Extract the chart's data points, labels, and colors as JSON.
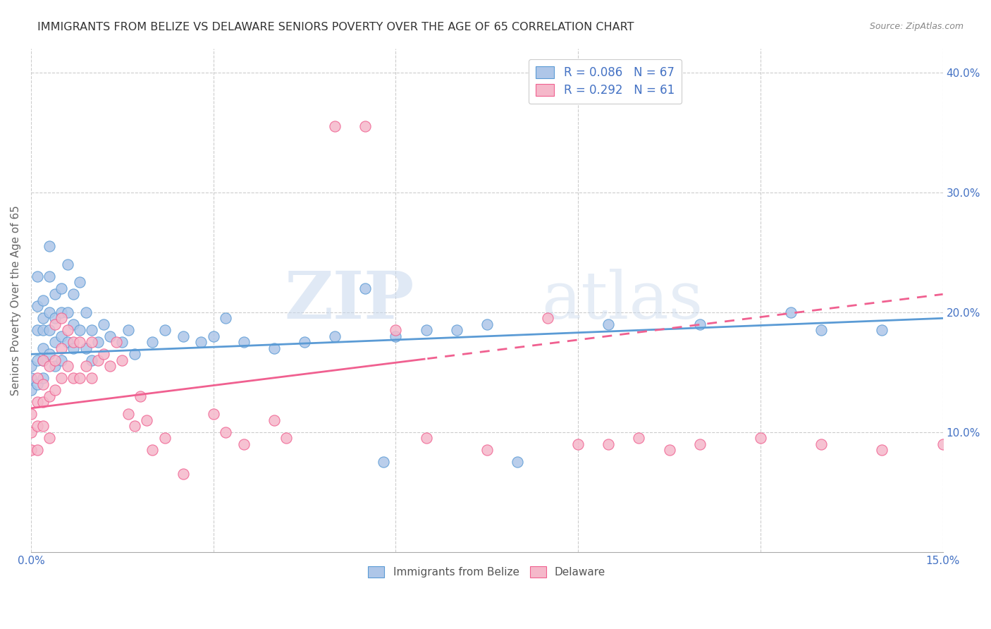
{
  "title": "IMMIGRANTS FROM BELIZE VS DELAWARE SENIORS POVERTY OVER THE AGE OF 65 CORRELATION CHART",
  "source": "Source: ZipAtlas.com",
  "ylabel": "Seniors Poverty Over the Age of 65",
  "xlim": [
    0.0,
    0.15
  ],
  "ylim": [
    0.0,
    0.42
  ],
  "xticks": [
    0.0,
    0.03,
    0.06,
    0.09,
    0.12,
    0.15
  ],
  "xtick_labels": [
    "0.0%",
    "",
    "",
    "",
    "",
    "15.0%"
  ],
  "yticks_right": [
    0.1,
    0.2,
    0.3,
    0.4
  ],
  "ytick_labels_right": [
    "10.0%",
    "20.0%",
    "30.0%",
    "40.0%"
  ],
  "belize_R": 0.086,
  "belize_N": 67,
  "delaware_R": 0.292,
  "delaware_N": 61,
  "belize_color": "#aec6e8",
  "delaware_color": "#f5b8ca",
  "belize_line_color": "#5b9bd5",
  "delaware_line_color": "#f06090",
  "legend_label_belize": "Immigrants from Belize",
  "legend_label_delaware": "Delaware",
  "watermark_zip": "ZIP",
  "watermark_atlas": "atlas",
  "belize_x": [
    0.0,
    0.0,
    0.0,
    0.001,
    0.001,
    0.001,
    0.001,
    0.001,
    0.002,
    0.002,
    0.002,
    0.002,
    0.002,
    0.002,
    0.003,
    0.003,
    0.003,
    0.003,
    0.003,
    0.004,
    0.004,
    0.004,
    0.004,
    0.005,
    0.005,
    0.005,
    0.005,
    0.006,
    0.006,
    0.006,
    0.007,
    0.007,
    0.007,
    0.008,
    0.008,
    0.009,
    0.009,
    0.01,
    0.01,
    0.011,
    0.012,
    0.013,
    0.015,
    0.016,
    0.017,
    0.02,
    0.022,
    0.03,
    0.032,
    0.04,
    0.055,
    0.058,
    0.065,
    0.075,
    0.08,
    0.095,
    0.11,
    0.125,
    0.13,
    0.14,
    0.025,
    0.028,
    0.035,
    0.045,
    0.05,
    0.06,
    0.07
  ],
  "belize_y": [
    0.155,
    0.145,
    0.135,
    0.23,
    0.205,
    0.185,
    0.16,
    0.14,
    0.21,
    0.195,
    0.185,
    0.17,
    0.16,
    0.145,
    0.255,
    0.23,
    0.2,
    0.185,
    0.165,
    0.215,
    0.195,
    0.175,
    0.155,
    0.22,
    0.2,
    0.18,
    0.16,
    0.24,
    0.2,
    0.175,
    0.215,
    0.19,
    0.17,
    0.225,
    0.185,
    0.2,
    0.17,
    0.185,
    0.16,
    0.175,
    0.19,
    0.18,
    0.175,
    0.185,
    0.165,
    0.175,
    0.185,
    0.18,
    0.195,
    0.17,
    0.22,
    0.075,
    0.185,
    0.19,
    0.075,
    0.19,
    0.19,
    0.2,
    0.185,
    0.185,
    0.18,
    0.175,
    0.175,
    0.175,
    0.18,
    0.18,
    0.185
  ],
  "delaware_x": [
    0.0,
    0.0,
    0.0,
    0.001,
    0.001,
    0.001,
    0.001,
    0.002,
    0.002,
    0.002,
    0.002,
    0.003,
    0.003,
    0.003,
    0.004,
    0.004,
    0.004,
    0.005,
    0.005,
    0.005,
    0.006,
    0.006,
    0.007,
    0.007,
    0.008,
    0.008,
    0.009,
    0.01,
    0.01,
    0.011,
    0.012,
    0.013,
    0.014,
    0.015,
    0.016,
    0.017,
    0.018,
    0.019,
    0.02,
    0.022,
    0.025,
    0.03,
    0.032,
    0.035,
    0.04,
    0.042,
    0.05,
    0.055,
    0.06,
    0.065,
    0.075,
    0.085,
    0.09,
    0.095,
    0.1,
    0.105,
    0.11,
    0.12,
    0.13,
    0.14,
    0.15
  ],
  "delaware_y": [
    0.115,
    0.1,
    0.085,
    0.145,
    0.125,
    0.105,
    0.085,
    0.16,
    0.14,
    0.125,
    0.105,
    0.155,
    0.13,
    0.095,
    0.19,
    0.16,
    0.135,
    0.195,
    0.17,
    0.145,
    0.185,
    0.155,
    0.175,
    0.145,
    0.175,
    0.145,
    0.155,
    0.175,
    0.145,
    0.16,
    0.165,
    0.155,
    0.175,
    0.16,
    0.115,
    0.105,
    0.13,
    0.11,
    0.085,
    0.095,
    0.065,
    0.115,
    0.1,
    0.09,
    0.11,
    0.095,
    0.355,
    0.355,
    0.185,
    0.095,
    0.085,
    0.195,
    0.09,
    0.09,
    0.095,
    0.085,
    0.09,
    0.095,
    0.09,
    0.085,
    0.09
  ]
}
